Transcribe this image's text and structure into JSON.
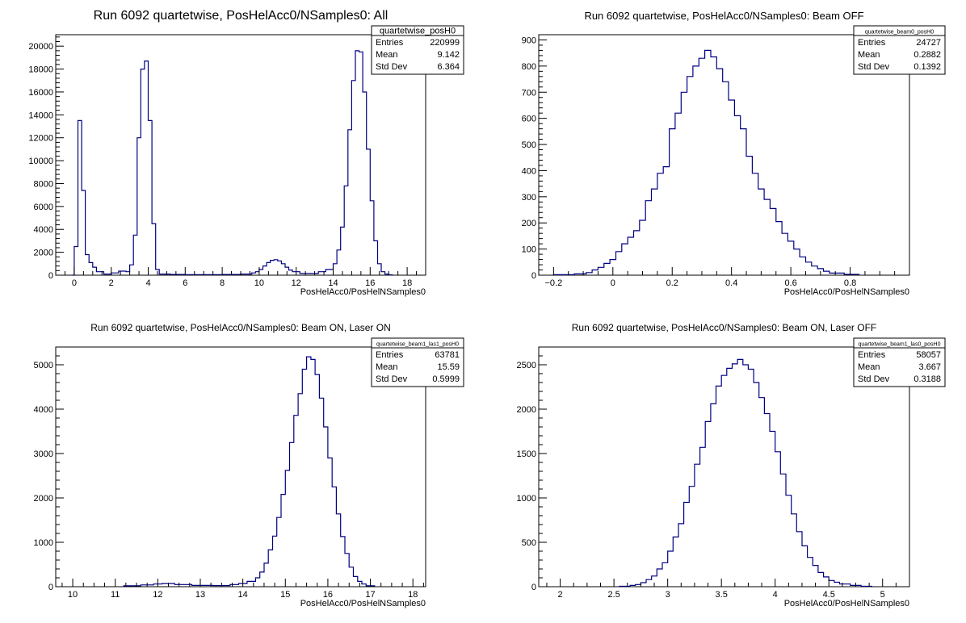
{
  "chart_data": [
    {
      "type": "histogram",
      "title": "Run 6092 quartetwise, PosHelAcc0/NSamples0: All",
      "xlabel": "PosHelAcc0/PosHelNSamples0",
      "xlim": [
        -1,
        19
      ],
      "ylim": [
        0,
        21000
      ],
      "xticks": [
        0,
        2,
        4,
        6,
        8,
        10,
        12,
        14,
        16,
        18
      ],
      "xtick_labels": [
        "0",
        "2",
        "4",
        "6",
        "8",
        "10",
        "12",
        "14",
        "16",
        "18"
      ],
      "yticks": [
        0,
        2000,
        4000,
        6000,
        8000,
        10000,
        12000,
        14000,
        16000,
        18000,
        20000
      ],
      "ytick_labels": [
        "0",
        "2000",
        "4000",
        "6000",
        "8000",
        "10000",
        "12000",
        "14000",
        "16000",
        "18000",
        "20000"
      ],
      "line_color": "#000080",
      "stats": {
        "name": "quartetwise_posH0",
        "rows": [
          {
            "label": "Entries",
            "value": "220999"
          },
          {
            "label": "Mean",
            "value": "9.142"
          },
          {
            "label": "Std Dev",
            "value": "6.364"
          }
        ]
      },
      "bins": [
        [
          -0.1,
          0
        ],
        [
          0.0,
          2500
        ],
        [
          0.2,
          13500
        ],
        [
          0.4,
          7400
        ],
        [
          0.6,
          1800
        ],
        [
          0.8,
          1100
        ],
        [
          1.0,
          700
        ],
        [
          1.2,
          300
        ],
        [
          1.6,
          100
        ],
        [
          2.0,
          200
        ],
        [
          2.4,
          350
        ],
        [
          2.8,
          300
        ],
        [
          3.0,
          900
        ],
        [
          3.2,
          3500
        ],
        [
          3.4,
          12000
        ],
        [
          3.6,
          18000
        ],
        [
          3.8,
          18700
        ],
        [
          4.0,
          13500
        ],
        [
          4.2,
          4500
        ],
        [
          4.4,
          500
        ],
        [
          4.6,
          100
        ],
        [
          5.2,
          60
        ],
        [
          6.0,
          50
        ],
        [
          7.0,
          50
        ],
        [
          8.0,
          60
        ],
        [
          9.0,
          100
        ],
        [
          9.6,
          200
        ],
        [
          9.8,
          300
        ],
        [
          10.0,
          500
        ],
        [
          10.2,
          800
        ],
        [
          10.4,
          1100
        ],
        [
          10.6,
          1300
        ],
        [
          10.8,
          1350
        ],
        [
          11.0,
          1250
        ],
        [
          11.2,
          1000
        ],
        [
          11.4,
          700
        ],
        [
          11.6,
          450
        ],
        [
          11.8,
          300
        ],
        [
          12.2,
          150
        ],
        [
          12.8,
          150
        ],
        [
          13.2,
          300
        ],
        [
          13.6,
          500
        ],
        [
          14.0,
          1000
        ],
        [
          14.2,
          2200
        ],
        [
          14.4,
          4200
        ],
        [
          14.6,
          7800
        ],
        [
          14.8,
          12700
        ],
        [
          15.0,
          17000
        ],
        [
          15.2,
          19600
        ],
        [
          15.4,
          19500
        ],
        [
          15.6,
          16000
        ],
        [
          15.8,
          11000
        ],
        [
          16.0,
          6500
        ],
        [
          16.2,
          3000
        ],
        [
          16.4,
          1000
        ],
        [
          16.6,
          300
        ],
        [
          16.8,
          100
        ],
        [
          17.0,
          30
        ]
      ],
      "bins_end": 17.2
    },
    {
      "type": "histogram",
      "title": "Run 6092 quartetwise, PosHelAcc0/NSamples0: Beam OFF",
      "xlabel": "PosHelAcc0/PosHelNSamples0",
      "xlim": [
        -0.25,
        1.0
      ],
      "ylim": [
        0,
        920
      ],
      "xticks": [
        -0.2,
        0,
        0.2,
        0.4,
        0.6,
        0.8
      ],
      "xtick_labels": [
        "−0.2",
        "0",
        "0.2",
        "0.4",
        "0.6",
        "0.8"
      ],
      "yticks": [
        0,
        100,
        200,
        300,
        400,
        500,
        600,
        700,
        800,
        900
      ],
      "ytick_labels": [
        "0",
        "100",
        "200",
        "300",
        "400",
        "500",
        "600",
        "700",
        "800",
        "900"
      ],
      "line_color": "#000080",
      "stats": {
        "name": "quartetwise_beam0_posH0",
        "rows": [
          {
            "label": "Entries",
            "value": "24727"
          },
          {
            "label": "Mean",
            "value": "0.2882"
          },
          {
            "label": "Std Dev",
            "value": "0.1392"
          }
        ]
      },
      "bins": [
        [
          -0.2,
          2
        ],
        [
          -0.13,
          5
        ],
        [
          -0.09,
          10
        ],
        [
          -0.07,
          20
        ],
        [
          -0.05,
          30
        ],
        [
          -0.03,
          45
        ],
        [
          -0.01,
          60
        ],
        [
          0.01,
          90
        ],
        [
          0.03,
          120
        ],
        [
          0.05,
          145
        ],
        [
          0.07,
          170
        ],
        [
          0.09,
          210
        ],
        [
          0.11,
          285
        ],
        [
          0.13,
          330
        ],
        [
          0.15,
          390
        ],
        [
          0.17,
          415
        ],
        [
          0.19,
          560
        ],
        [
          0.21,
          620
        ],
        [
          0.23,
          700
        ],
        [
          0.25,
          760
        ],
        [
          0.27,
          800
        ],
        [
          0.29,
          830
        ],
        [
          0.31,
          860
        ],
        [
          0.33,
          835
        ],
        [
          0.35,
          790
        ],
        [
          0.37,
          740
        ],
        [
          0.39,
          670
        ],
        [
          0.41,
          610
        ],
        [
          0.43,
          560
        ],
        [
          0.45,
          455
        ],
        [
          0.47,
          390
        ],
        [
          0.49,
          330
        ],
        [
          0.51,
          290
        ],
        [
          0.53,
          255
        ],
        [
          0.55,
          205
        ],
        [
          0.57,
          160
        ],
        [
          0.59,
          130
        ],
        [
          0.61,
          100
        ],
        [
          0.63,
          70
        ],
        [
          0.65,
          50
        ],
        [
          0.67,
          35
        ],
        [
          0.69,
          25
        ],
        [
          0.71,
          15
        ],
        [
          0.73,
          8
        ],
        [
          0.78,
          3
        ]
      ],
      "bins_end": 0.83
    },
    {
      "type": "histogram",
      "title": "Run 6092 quartetwise, PosHelAcc0/NSamples0: Beam ON, Laser ON",
      "xlabel": "PosHelAcc0/PosHelNSamples0",
      "xlim": [
        9.6,
        18.3
      ],
      "ylim": [
        0,
        5400
      ],
      "xticks": [
        10,
        11,
        12,
        13,
        14,
        15,
        16,
        17,
        18
      ],
      "xtick_labels": [
        "10",
        "11",
        "12",
        "13",
        "14",
        "15",
        "16",
        "17",
        "18"
      ],
      "yticks": [
        0,
        1000,
        2000,
        3000,
        4000,
        5000
      ],
      "ytick_labels": [
        "0",
        "1000",
        "2000",
        "3000",
        "4000",
        "5000"
      ],
      "line_color": "#000080",
      "stats": {
        "name": "quartetwise_beam1_las1_posH0",
        "rows": [
          {
            "label": "Entries",
            "value": "63781"
          },
          {
            "label": "Mean",
            "value": "15.59"
          },
          {
            "label": "Std Dev",
            "value": "0.5999"
          }
        ]
      },
      "bins": [
        [
          11.2,
          20
        ],
        [
          11.6,
          40
        ],
        [
          11.9,
          60
        ],
        [
          12.1,
          70
        ],
        [
          12.4,
          50
        ],
        [
          12.8,
          30
        ],
        [
          13.3,
          25
        ],
        [
          13.7,
          50
        ],
        [
          13.9,
          70
        ],
        [
          14.1,
          120
        ],
        [
          14.3,
          200
        ],
        [
          14.4,
          330
        ],
        [
          14.5,
          530
        ],
        [
          14.6,
          830
        ],
        [
          14.7,
          1140
        ],
        [
          14.8,
          1560
        ],
        [
          14.9,
          2080
        ],
        [
          15.0,
          2620
        ],
        [
          15.1,
          3250
        ],
        [
          15.2,
          3860
        ],
        [
          15.3,
          4350
        ],
        [
          15.4,
          4900
        ],
        [
          15.5,
          5180
        ],
        [
          15.6,
          5120
        ],
        [
          15.7,
          4780
        ],
        [
          15.8,
          4250
        ],
        [
          15.9,
          3600
        ],
        [
          16.0,
          2900
        ],
        [
          16.1,
          2250
        ],
        [
          16.2,
          1640
        ],
        [
          16.3,
          1130
        ],
        [
          16.4,
          750
        ],
        [
          16.5,
          440
        ],
        [
          16.6,
          230
        ],
        [
          16.7,
          120
        ],
        [
          16.8,
          60
        ],
        [
          16.9,
          20
        ]
      ],
      "bins_end": 17.1
    },
    {
      "type": "histogram",
      "title": "Run 6092 quartetwise, PosHelAcc0/NSamples0: Beam ON, Laser OFF",
      "xlabel": "PosHelAcc0/PosHelNSamples0",
      "xlim": [
        1.8,
        5.25
      ],
      "ylim": [
        0,
        2700
      ],
      "xticks": [
        2,
        2.5,
        3,
        3.5,
        4,
        4.5,
        5
      ],
      "xtick_labels": [
        "2",
        "2.5",
        "3",
        "3.5",
        "4",
        "4.5",
        "5"
      ],
      "yticks": [
        0,
        500,
        1000,
        1500,
        2000,
        2500
      ],
      "ytick_labels": [
        "0",
        "500",
        "1000",
        "1500",
        "2000",
        "2500"
      ],
      "line_color": "#000080",
      "stats": {
        "name": "quartetwise_beam1_las0_posH0",
        "rows": [
          {
            "label": "Entries",
            "value": "58057"
          },
          {
            "label": "Mean",
            "value": "3.667"
          },
          {
            "label": "Std Dev",
            "value": "0.3188"
          }
        ]
      },
      "bins": [
        [
          2.55,
          5
        ],
        [
          2.65,
          15
        ],
        [
          2.7,
          25
        ],
        [
          2.75,
          45
        ],
        [
          2.8,
          80
        ],
        [
          2.85,
          120
        ],
        [
          2.9,
          200
        ],
        [
          2.95,
          270
        ],
        [
          3.0,
          400
        ],
        [
          3.05,
          560
        ],
        [
          3.1,
          710
        ],
        [
          3.15,
          950
        ],
        [
          3.2,
          1130
        ],
        [
          3.25,
          1380
        ],
        [
          3.3,
          1570
        ],
        [
          3.35,
          1860
        ],
        [
          3.4,
          2060
        ],
        [
          3.45,
          2260
        ],
        [
          3.5,
          2380
        ],
        [
          3.55,
          2460
        ],
        [
          3.6,
          2510
        ],
        [
          3.65,
          2560
        ],
        [
          3.7,
          2500
        ],
        [
          3.75,
          2450
        ],
        [
          3.8,
          2300
        ],
        [
          3.85,
          2130
        ],
        [
          3.9,
          1950
        ],
        [
          3.95,
          1750
        ],
        [
          4.0,
          1520
        ],
        [
          4.05,
          1270
        ],
        [
          4.1,
          1030
        ],
        [
          4.15,
          820
        ],
        [
          4.2,
          620
        ],
        [
          4.25,
          460
        ],
        [
          4.3,
          330
        ],
        [
          4.35,
          240
        ],
        [
          4.4,
          160
        ],
        [
          4.45,
          110
        ],
        [
          4.5,
          70
        ],
        [
          4.55,
          50
        ],
        [
          4.6,
          30
        ],
        [
          4.7,
          15
        ],
        [
          4.8,
          5
        ]
      ],
      "bins_end": 4.9
    }
  ]
}
